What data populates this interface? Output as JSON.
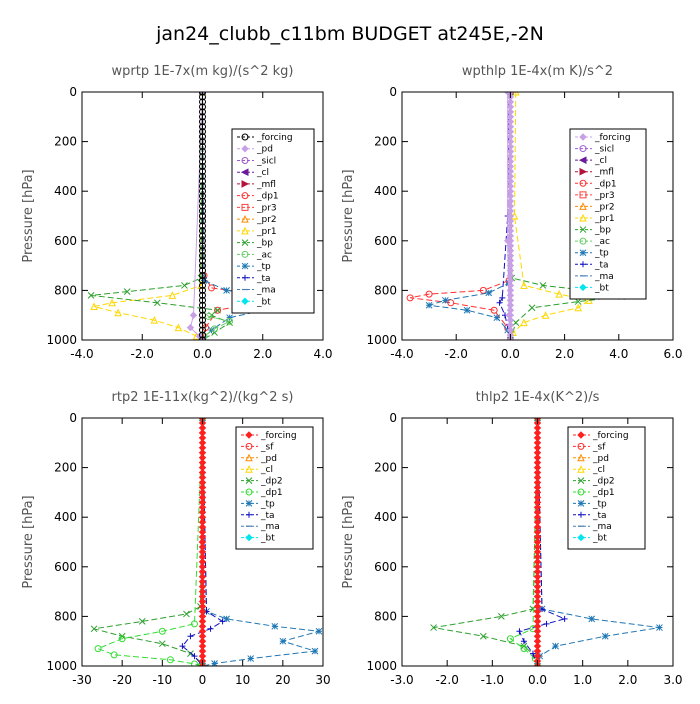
{
  "figure_title": "jan24_clubb_c11bm  BUDGET at245E,-2N",
  "chart_data": [
    {
      "type": "line",
      "title": "wprtp   1E-7x(m kg)/(s^2 kg)",
      "ylabel": "Pressure [hPa]",
      "xlim": [
        -4.0,
        4.0
      ],
      "ylim": [
        0,
        1000
      ],
      "xticks": [
        -4.0,
        -2.0,
        0.0,
        2.0,
        4.0
      ],
      "xtick_labels": [
        "-4.0",
        "-2.0",
        "0.0",
        "2.0",
        "4.0"
      ],
      "yticks": [
        0,
        200,
        400,
        600,
        800,
        1000
      ],
      "ytick_labels": [
        "0",
        "200",
        "400",
        "600",
        "800",
        "1000"
      ],
      "legend_position": "top-right",
      "legend": [
        {
          "name": "_forcing",
          "color": "#000000",
          "marker": "circle"
        },
        {
          "name": "_pd",
          "color": "#c8a0e6",
          "marker": "diamond"
        },
        {
          "name": "_sicl",
          "color": "#a05ad2",
          "marker": "circle"
        },
        {
          "name": "_cl",
          "color": "#6a1a9a",
          "marker": "tri-left"
        },
        {
          "name": "_mfl",
          "color": "#b4143c",
          "marker": "tri-right"
        },
        {
          "name": "_dp1",
          "color": "#ff3030",
          "marker": "circle"
        },
        {
          "name": "_pr3",
          "color": "#ff4040",
          "marker": "square"
        },
        {
          "name": "_pr2",
          "color": "#ff8c00",
          "marker": "triangle"
        },
        {
          "name": "_pr1",
          "color": "#ffd700",
          "marker": "triangle"
        },
        {
          "name": "_bp",
          "color": "#2ca02c",
          "marker": "cross"
        },
        {
          "name": "_ac",
          "color": "#66cc66",
          "marker": "circle"
        },
        {
          "name": "_tp",
          "color": "#1f77b4",
          "marker": "star"
        },
        {
          "name": "_ta",
          "color": "#1010c0",
          "marker": "plus"
        },
        {
          "name": "_ma",
          "color": "#4a7fb5",
          "marker": "dash"
        },
        {
          "name": "_bt",
          "color": "#00e5ee",
          "marker": "diamond"
        }
      ],
      "series": [
        {
          "name": "_dp1",
          "color": "#ff3030",
          "dash": "6,3",
          "marker": "circle",
          "x": [
            0,
            0.05,
            0.3,
            1.5,
            3.1,
            2.0,
            0.5,
            0.1,
            0
          ],
          "y": [
            0,
            740,
            790,
            810,
            825,
            845,
            880,
            950,
            1000
          ]
        },
        {
          "name": "_pr1",
          "color": "#ffd700",
          "dash": "6,3",
          "marker": "triangle",
          "x": [
            0,
            -0.05,
            -1.0,
            -3.0,
            -3.6,
            -2.8,
            -1.6,
            -0.8,
            -0.2,
            0
          ],
          "y": [
            0,
            780,
            820,
            850,
            865,
            890,
            920,
            950,
            985,
            1000
          ]
        },
        {
          "name": "_bp",
          "color": "#2ca02c",
          "dash": "6,3",
          "marker": "cross",
          "x": [
            0,
            -0.05,
            -0.6,
            -2.5,
            -3.7,
            -1.5,
            0.5,
            0.3,
            0.9,
            0.4,
            0
          ],
          "y": [
            0,
            750,
            780,
            805,
            820,
            850,
            880,
            900,
            930,
            970,
            1000
          ]
        },
        {
          "name": "_tp",
          "color": "#1f77b4",
          "dash": "6,3",
          "marker": "star",
          "x": [
            0,
            0.05,
            0.8,
            2.6,
            3.2,
            2.2,
            0.9,
            0.3,
            0
          ],
          "y": [
            0,
            760,
            800,
            830,
            850,
            875,
            910,
            960,
            1000
          ]
        },
        {
          "name": "_ac",
          "color": "#66cc66",
          "dash": "6,3",
          "marker": "circle",
          "x": [
            0,
            0,
            0.2,
            0.9,
            0.4,
            0.05,
            0
          ],
          "y": [
            0,
            880,
            905,
            925,
            955,
            985,
            1000
          ]
        },
        {
          "name": "_pd",
          "color": "#c8a0e6",
          "dash": "",
          "marker": "diamond",
          "x": [
            0,
            -0.3,
            -0.4,
            -0.1,
            0
          ],
          "y": [
            0,
            900,
            950,
            985,
            1000
          ]
        },
        {
          "name": "_forcing",
          "color": "#000000",
          "dash": "",
          "marker": "circle",
          "x": [
            0,
            0,
            0
          ],
          "y": [
            0,
            500,
            1000
          ]
        }
      ]
    },
    {
      "type": "line",
      "title": "wpthlp   1E-4x(m K)/s^2",
      "ylabel": "Pressure [hPa]",
      "xlim": [
        -4.0,
        6.0
      ],
      "ylim": [
        0,
        1000
      ],
      "xticks": [
        -4.0,
        -2.0,
        0.0,
        2.0,
        4.0,
        6.0
      ],
      "xtick_labels": [
        "-4.0",
        "-2.0",
        "0.0",
        "2.0",
        "4.0",
        "6.0"
      ],
      "yticks": [
        0,
        200,
        400,
        600,
        800,
        1000
      ],
      "ytick_labels": [
        "0",
        "200",
        "400",
        "600",
        "800",
        "1000"
      ],
      "legend_position": "top-right",
      "legend": [
        {
          "name": "_forcing",
          "color": "#c8a0e6",
          "marker": "diamond"
        },
        {
          "name": "_sicl",
          "color": "#a05ad2",
          "marker": "circle"
        },
        {
          "name": "_cl",
          "color": "#6a1a9a",
          "marker": "tri-left"
        },
        {
          "name": "_mfl",
          "color": "#b4143c",
          "marker": "tri-right"
        },
        {
          "name": "_dp1",
          "color": "#ff3030",
          "marker": "circle"
        },
        {
          "name": "_pr3",
          "color": "#ff4040",
          "marker": "square"
        },
        {
          "name": "_pr2",
          "color": "#ff8c00",
          "marker": "triangle"
        },
        {
          "name": "_pr1",
          "color": "#ffd700",
          "marker": "triangle"
        },
        {
          "name": "_bp",
          "color": "#2ca02c",
          "marker": "cross"
        },
        {
          "name": "_ac",
          "color": "#66cc66",
          "marker": "circle"
        },
        {
          "name": "_tp",
          "color": "#1f77b4",
          "marker": "star"
        },
        {
          "name": "_ta",
          "color": "#1010c0",
          "marker": "plus"
        },
        {
          "name": "_ma",
          "color": "#4a7fb5",
          "marker": "dash"
        },
        {
          "name": "_bt",
          "color": "#00e5ee",
          "marker": "diamond"
        }
      ],
      "series": [
        {
          "name": "_pr1",
          "color": "#ffd700",
          "dash": "6,3",
          "marker": "triangle",
          "x": [
            0.2,
            0.15,
            0.5,
            1.8,
            2.9,
            2.5,
            1.3,
            0.5,
            0.1,
            0
          ],
          "y": [
            0,
            500,
            780,
            815,
            840,
            870,
            900,
            930,
            970,
            1000
          ]
        },
        {
          "name": "_dp1",
          "color": "#ff3030",
          "dash": "6,3",
          "marker": "circle",
          "x": [
            0,
            -0.05,
            -1.0,
            -3.0,
            -3.7,
            -2.2,
            -0.6,
            -0.1,
            0
          ],
          "y": [
            0,
            760,
            800,
            815,
            830,
            850,
            880,
            950,
            1000
          ]
        },
        {
          "name": "_bp",
          "color": "#2ca02c",
          "dash": "6,3",
          "marker": "cross",
          "x": [
            0,
            0.05,
            1.2,
            3.2,
            4.1,
            2.5,
            0.8,
            0.2,
            0
          ],
          "y": [
            0,
            750,
            780,
            805,
            825,
            845,
            870,
            930,
            1000
          ]
        },
        {
          "name": "_tp",
          "color": "#1f77b4",
          "dash": "6,3",
          "marker": "star",
          "x": [
            0,
            -0.05,
            -0.8,
            -2.4,
            -3.0,
            -1.6,
            -0.5,
            -0.1,
            0
          ],
          "y": [
            0,
            770,
            810,
            840,
            860,
            880,
            910,
            960,
            1000
          ]
        },
        {
          "name": "_ta",
          "color": "#1010c0",
          "dash": "6,3",
          "marker": "plus",
          "x": [
            -0.05,
            -0.1,
            -0.3,
            -0.4,
            -0.2,
            0
          ],
          "y": [
            0,
            500,
            830,
            850,
            900,
            1000
          ]
        },
        {
          "name": "_forcing",
          "color": "#c8a0e6",
          "dash": "",
          "marker": "diamond",
          "x": [
            -0.1,
            -0.1,
            -0.05,
            0
          ],
          "y": [
            0,
            600,
            900,
            1000
          ]
        }
      ]
    },
    {
      "type": "line",
      "title": "rtp2   1E-11x(kg^2)/(kg^2 s)",
      "ylabel": "Pressure [hPa]",
      "xlim": [
        -30,
        30
      ],
      "ylim": [
        0,
        1000
      ],
      "xticks": [
        -30,
        -20,
        -10,
        0,
        10,
        20,
        30
      ],
      "xtick_labels": [
        "-30",
        "-20",
        "-10",
        "0",
        "10",
        "20",
        "30"
      ],
      "yticks": [
        0,
        200,
        400,
        600,
        800,
        1000
      ],
      "ytick_labels": [
        "0",
        "200",
        "400",
        "600",
        "800",
        "1000"
      ],
      "legend_position": "top-right",
      "legend": [
        {
          "name": "_forcing",
          "color": "#ff2020",
          "marker": "diamond"
        },
        {
          "name": "_sf",
          "color": "#ff3030",
          "marker": "circle"
        },
        {
          "name": "_pd",
          "color": "#ff8c00",
          "marker": "triangle"
        },
        {
          "name": "_cl",
          "color": "#ffd700",
          "marker": "triangle"
        },
        {
          "name": "_dp2",
          "color": "#2ca02c",
          "marker": "cross"
        },
        {
          "name": "_dp1",
          "color": "#33dd33",
          "marker": "circle"
        },
        {
          "name": "_tp",
          "color": "#1f77b4",
          "marker": "star"
        },
        {
          "name": "_ta",
          "color": "#1010c0",
          "marker": "plus"
        },
        {
          "name": "_ma",
          "color": "#4a7fb5",
          "marker": "dash"
        },
        {
          "name": "_bt",
          "color": "#00e5ee",
          "marker": "diamond"
        }
      ],
      "series": [
        {
          "name": "_dp2",
          "color": "#2ca02c",
          "dash": "6,3",
          "marker": "cross",
          "x": [
            0,
            -0.5,
            -4,
            -15,
            -27,
            -20,
            -10,
            -3,
            -0.5,
            0
          ],
          "y": [
            0,
            760,
            790,
            820,
            850,
            880,
            910,
            950,
            985,
            1000
          ]
        },
        {
          "name": "_dp1",
          "color": "#33dd33",
          "dash": "6,3",
          "marker": "circle",
          "x": [
            0,
            -2,
            -10,
            -20,
            -26,
            -22,
            -8,
            -2,
            0
          ],
          "y": [
            0,
            830,
            860,
            890,
            930,
            955,
            975,
            992,
            1000
          ]
        },
        {
          "name": "_tp",
          "color": "#1f77b4",
          "dash": "6,3",
          "marker": "star",
          "x": [
            0,
            1,
            6,
            18,
            29,
            20,
            28,
            12,
            3,
            0
          ],
          "y": [
            0,
            780,
            810,
            840,
            860,
            900,
            940,
            970,
            990,
            1000
          ]
        },
        {
          "name": "_ta",
          "color": "#1010c0",
          "dash": "6,3",
          "marker": "plus",
          "x": [
            0,
            1,
            5,
            2,
            -3,
            -5,
            -2,
            0
          ],
          "y": [
            0,
            780,
            820,
            850,
            880,
            920,
            960,
            1000
          ]
        },
        {
          "name": "_forcing",
          "color": "#ff2020",
          "dash": "",
          "marker": "diamond",
          "x": [
            0,
            0,
            0
          ],
          "y": [
            0,
            500,
            1000
          ]
        }
      ]
    },
    {
      "type": "line",
      "title": "thlp2   1E-4x(K^2)/s",
      "ylabel": "Pressure [hPa]",
      "xlim": [
        -3.0,
        3.0
      ],
      "ylim": [
        0,
        1000
      ],
      "xticks": [
        -3.0,
        -2.0,
        -1.0,
        0.0,
        1.0,
        2.0,
        3.0
      ],
      "xtick_labels": [
        "-3.0",
        "-2.0",
        "-1.0",
        "0.0",
        "1.0",
        "2.0",
        "3.0"
      ],
      "yticks": [
        0,
        200,
        400,
        600,
        800,
        1000
      ],
      "ytick_labels": [
        "0",
        "200",
        "400",
        "600",
        "800",
        "1000"
      ],
      "legend_position": "top-right",
      "legend": [
        {
          "name": "_forcing",
          "color": "#ff2020",
          "marker": "diamond"
        },
        {
          "name": "_sf",
          "color": "#ff3030",
          "marker": "circle"
        },
        {
          "name": "_pd",
          "color": "#ff8c00",
          "marker": "triangle"
        },
        {
          "name": "_cl",
          "color": "#ffd700",
          "marker": "triangle"
        },
        {
          "name": "_dp2",
          "color": "#2ca02c",
          "marker": "cross"
        },
        {
          "name": "_dp1",
          "color": "#33dd33",
          "marker": "circle"
        },
        {
          "name": "_tp",
          "color": "#1f77b4",
          "marker": "star"
        },
        {
          "name": "_ta",
          "color": "#1010c0",
          "marker": "plus"
        },
        {
          "name": "_ma",
          "color": "#4a7fb5",
          "marker": "dash"
        },
        {
          "name": "_bt",
          "color": "#00e5ee",
          "marker": "diamond"
        }
      ],
      "series": [
        {
          "name": "_dp2",
          "color": "#2ca02c",
          "dash": "6,3",
          "marker": "cross",
          "x": [
            0,
            -0.1,
            -0.8,
            -2.3,
            -1.2,
            -0.3,
            -0.05,
            0
          ],
          "y": [
            0,
            770,
            800,
            845,
            880,
            920,
            960,
            1000
          ]
        },
        {
          "name": "_dp1",
          "color": "#33dd33",
          "dash": "6,3",
          "marker": "circle",
          "x": [
            0,
            -0.1,
            -0.6,
            -0.3,
            -0.05,
            0
          ],
          "y": [
            0,
            850,
            890,
            930,
            970,
            1000
          ]
        },
        {
          "name": "_tp",
          "color": "#1f77b4",
          "dash": "6,3",
          "marker": "star",
          "x": [
            0,
            0.1,
            1.2,
            2.7,
            1.5,
            0.4,
            0.05,
            0
          ],
          "y": [
            0,
            770,
            810,
            845,
            880,
            920,
            960,
            1000
          ]
        },
        {
          "name": "_ta",
          "color": "#1010c0",
          "dash": "6,3",
          "marker": "plus",
          "x": [
            0,
            0.1,
            0.6,
            0.2,
            -0.4,
            -0.3,
            -0.1,
            0
          ],
          "y": [
            0,
            770,
            810,
            830,
            860,
            900,
            950,
            1000
          ]
        },
        {
          "name": "_forcing",
          "color": "#ff2020",
          "dash": "",
          "marker": "diamond",
          "x": [
            0,
            0,
            0
          ],
          "y": [
            0,
            500,
            1000
          ]
        }
      ]
    }
  ]
}
